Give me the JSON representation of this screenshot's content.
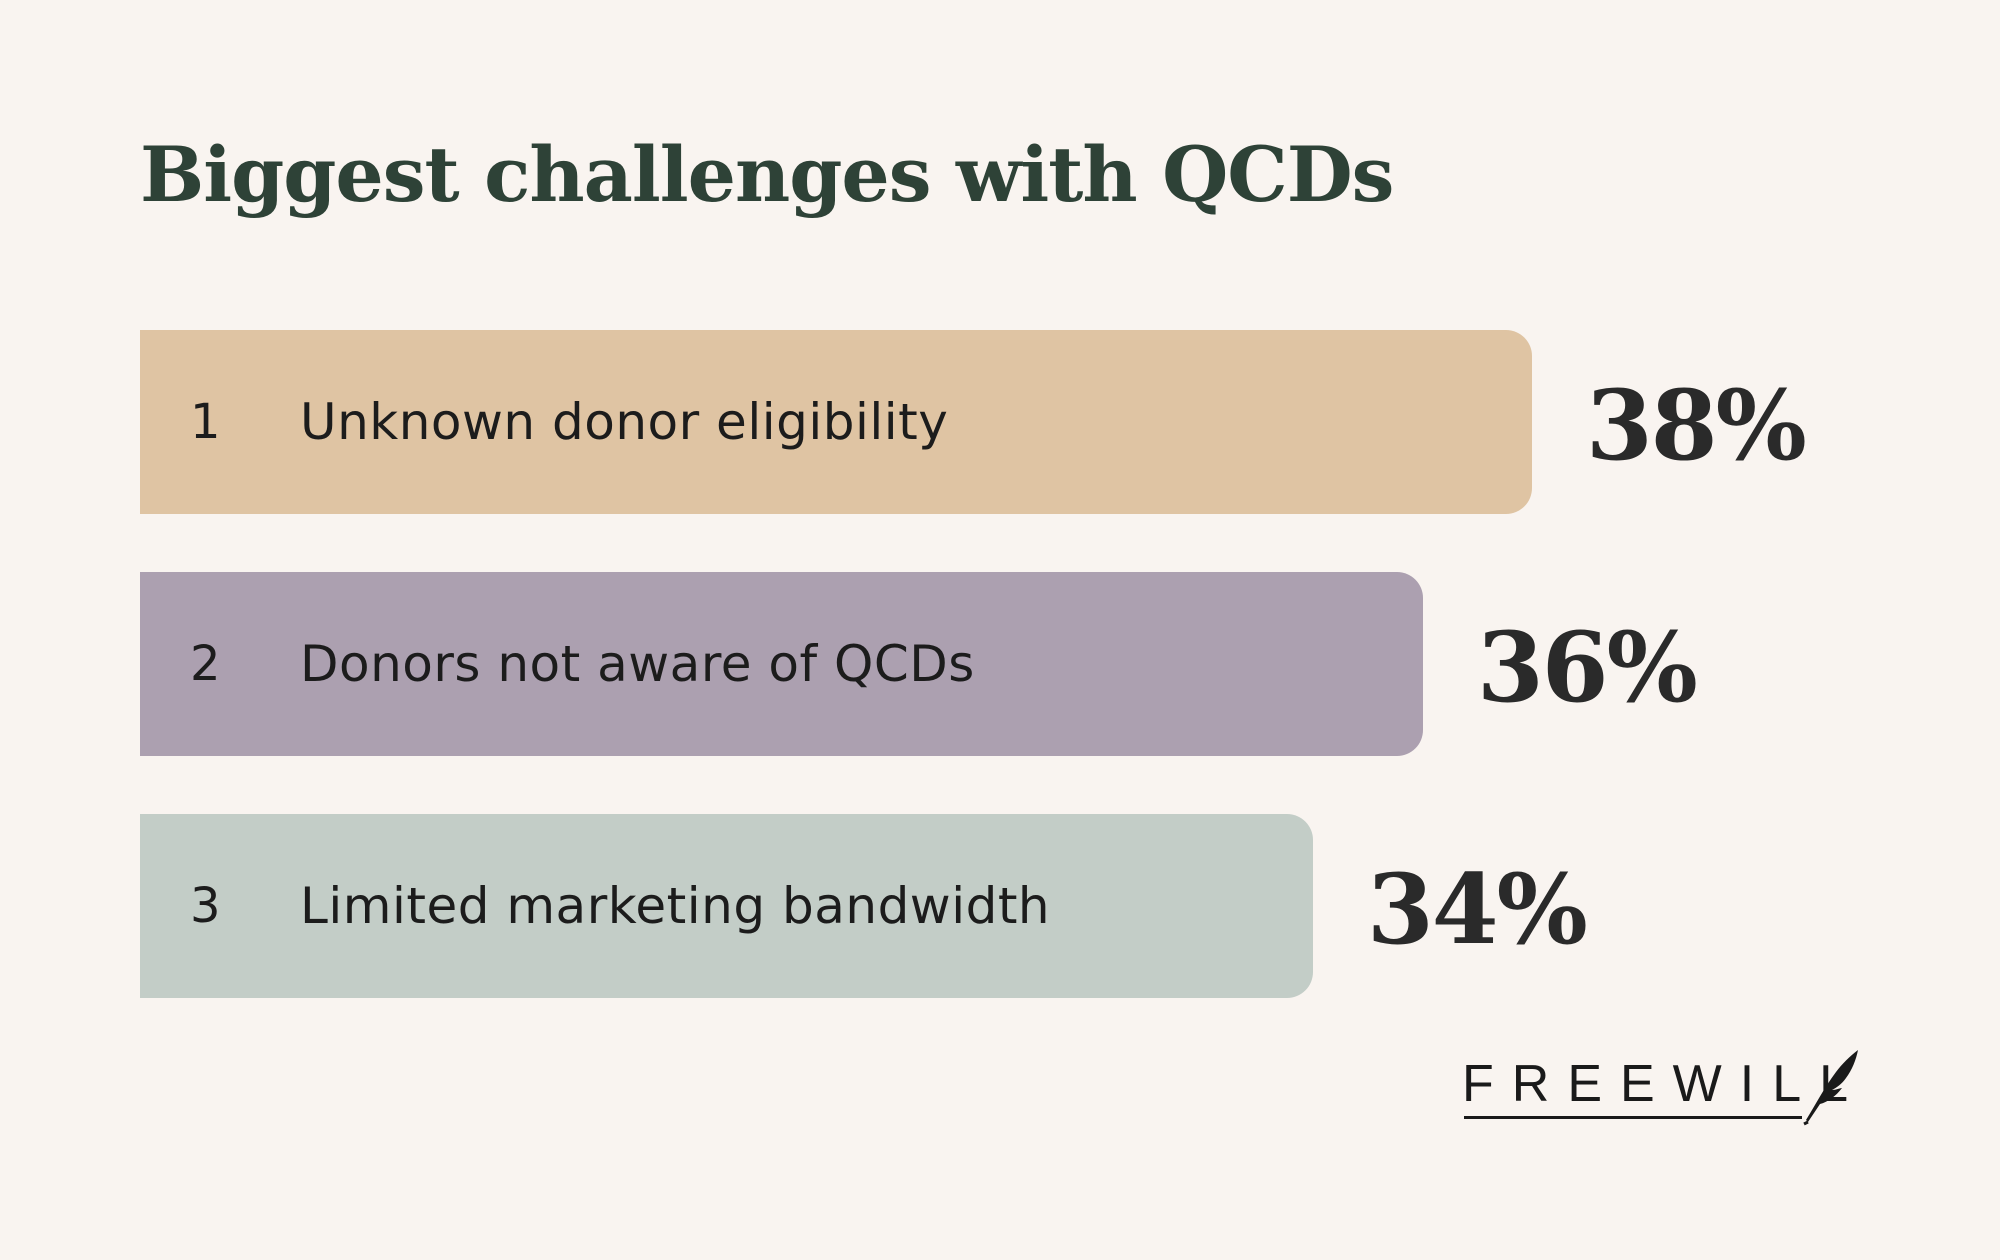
{
  "chart_data": {
    "type": "bar",
    "orientation": "horizontal",
    "title": "Biggest challenges with QCDs",
    "xlabel": "",
    "ylabel": "",
    "xlim": [
      0,
      38
    ],
    "grid": false,
    "legend": "none",
    "categories": [
      "Unknown donor eligibility",
      "Donors not aware of QCDs",
      "Limited marketing bandwidth"
    ],
    "ranks": [
      "1",
      "2",
      "3"
    ],
    "values": [
      38,
      36,
      34
    ],
    "value_labels": [
      "38%",
      "36%",
      "34%"
    ],
    "colors": [
      "#dfc4a3",
      "#aca0b0",
      "#c3cdc7"
    ]
  },
  "brand": {
    "logo_text": "FREEWILL",
    "text_color": "#1a1a1a"
  },
  "colors": {
    "background": "#f9f4f0",
    "title": "#2e4237"
  }
}
